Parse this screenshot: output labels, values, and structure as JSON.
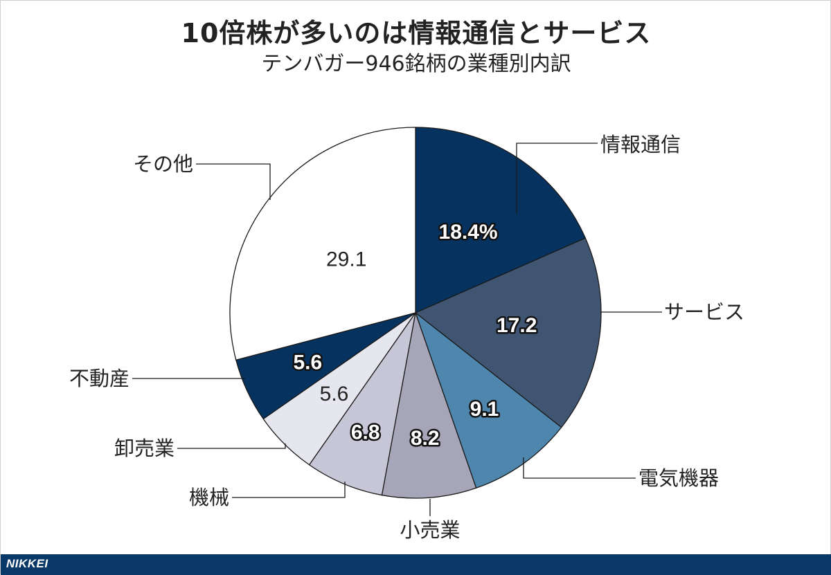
{
  "title": "10倍株が多いのは情報通信とサービス",
  "subtitle": "テンバガー946銘柄の業種別内訳",
  "brand": "NIKKEI",
  "colors": {
    "text": "#222222",
    "footer": "#0b3967"
  },
  "chart_data": {
    "type": "pie",
    "title": "10倍株が多いのは情報通信とサービス",
    "subtitle": "テンバガー946銘柄の業種別内訳",
    "unit": "%",
    "series": [
      {
        "label": "情報通信",
        "value": 18.4,
        "value_label": "18.4%",
        "color": "#06325f",
        "label_style": "outlined"
      },
      {
        "label": "サービス",
        "value": 17.2,
        "value_label": "17.2",
        "color": "#3f5572",
        "label_style": "outlined"
      },
      {
        "label": "電気機器",
        "value": 9.1,
        "value_label": "9.1",
        "color": "#4f86ad",
        "label_style": "outlined"
      },
      {
        "label": "小売業",
        "value": 8.2,
        "value_label": "8.2",
        "color": "#a6a6b8",
        "label_style": "outlined"
      },
      {
        "label": "機械",
        "value": 6.8,
        "value_label": "6.8",
        "color": "#c6c6d7",
        "label_style": "outlined"
      },
      {
        "label": "卸売業",
        "value": 5.6,
        "value_label": "5.6",
        "color": "#e6e6ee",
        "label_style": "plain"
      },
      {
        "label": "不動産",
        "value": 5.6,
        "value_label": "5.6",
        "color": "#06325f",
        "label_style": "outlined"
      },
      {
        "label": "その他",
        "value": 29.1,
        "value_label": "29.1",
        "color": "#ffffff",
        "label_style": "plain"
      }
    ],
    "start": "12 o'clock",
    "direction": "clockwise",
    "legend": "none"
  }
}
